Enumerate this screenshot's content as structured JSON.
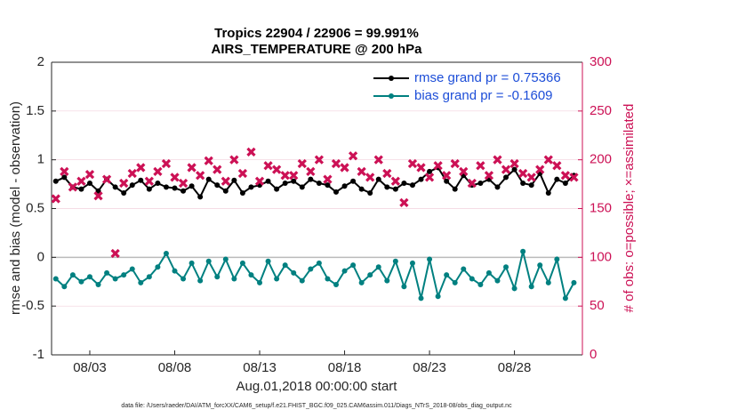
{
  "chart_data": {
    "type": "line",
    "title": "Tropics 22904 / 22906 = 99.991%",
    "subtitle": "AIRS_TEMPERATURE @ 200 hPa",
    "y_label": "rmse and bias (model - observation)",
    "y2_label": "# of obs: o=possible; ×=assimilated",
    "x_label": "Aug.01,2018 00:00:00 start",
    "footnote": "data file: /Users/raeder/DAI/ATM_forcXX/CAM6_setup/f.e21.FHIST_BGC.f09_025.CAM6assim.011/Diags_NTrS_2018-08/obs_diag_output.nc",
    "x": [
      0,
      0.5,
      1,
      1.5,
      2,
      2.5,
      3,
      3.5,
      4,
      4.5,
      5,
      5.5,
      6,
      6.5,
      7,
      7.5,
      8,
      8.5,
      9,
      9.5,
      10,
      10.5,
      11,
      11.5,
      12,
      12.5,
      13,
      13.5,
      14,
      14.5,
      15,
      15.5,
      16,
      16.5,
      17,
      17.5,
      18,
      18.5,
      19,
      19.5,
      20,
      20.5,
      21,
      21.5,
      22,
      22.5,
      23,
      23.5,
      24,
      24.5,
      25,
      25.5,
      26,
      26.5,
      27,
      27.5,
      28,
      28.5,
      29,
      29.5,
      30,
      30.5
    ],
    "xlim": [
      -0.25,
      31
    ],
    "xticks": [
      {
        "value": 2,
        "label": "08/03"
      },
      {
        "value": 7,
        "label": "08/08"
      },
      {
        "value": 12,
        "label": "08/13"
      },
      {
        "value": 17,
        "label": "08/18"
      },
      {
        "value": 22,
        "label": "08/23"
      },
      {
        "value": 27,
        "label": "08/28"
      }
    ],
    "ylim": [
      -1,
      2
    ],
    "yticks": [
      -1,
      -0.5,
      0,
      0.5,
      1,
      1.5,
      2
    ],
    "y2lim": [
      0,
      300
    ],
    "y2ticks": [
      0,
      50,
      100,
      150,
      200,
      250,
      300
    ],
    "grid": true,
    "legend": "top-right",
    "series": [
      {
        "name": "rmse grand pr = 0.75366",
        "color": "#000000",
        "values": [
          0.78,
          0.82,
          0.72,
          0.7,
          0.76,
          0.68,
          0.8,
          0.72,
          0.66,
          0.74,
          0.79,
          0.7,
          0.76,
          0.72,
          0.71,
          0.68,
          0.73,
          0.62,
          0.8,
          0.74,
          0.68,
          0.79,
          0.66,
          0.72,
          0.74,
          0.78,
          0.7,
          0.76,
          0.78,
          0.72,
          0.8,
          0.76,
          0.74,
          0.67,
          0.73,
          0.78,
          0.7,
          0.66,
          0.8,
          0.72,
          0.7,
          0.76,
          0.74,
          0.8,
          0.88,
          0.92,
          0.78,
          0.7,
          0.84,
          0.74,
          0.76,
          0.8,
          0.72,
          0.82,
          0.9,
          0.76,
          0.74,
          0.86,
          0.66,
          0.8,
          0.76,
          0.84
        ]
      },
      {
        "name": "bias grand pr = -0.1609",
        "color": "#008080",
        "values": [
          -0.22,
          -0.3,
          -0.18,
          -0.25,
          -0.2,
          -0.28,
          -0.16,
          -0.22,
          -0.18,
          -0.12,
          -0.26,
          -0.2,
          -0.1,
          0.04,
          -0.14,
          -0.22,
          -0.06,
          -0.24,
          -0.04,
          -0.2,
          -0.02,
          -0.22,
          -0.06,
          -0.18,
          -0.26,
          -0.04,
          -0.22,
          -0.08,
          -0.16,
          -0.24,
          -0.12,
          -0.06,
          -0.22,
          -0.28,
          -0.14,
          -0.08,
          -0.26,
          -0.18,
          -0.1,
          -0.24,
          -0.04,
          -0.3,
          -0.06,
          -0.42,
          -0.02,
          -0.4,
          -0.18,
          -0.26,
          -0.12,
          -0.22,
          -0.28,
          -0.16,
          -0.24,
          -0.1,
          -0.32,
          0.06,
          -0.3,
          -0.08,
          -0.26,
          -0.02,
          -0.42,
          -0.26
        ]
      },
      {
        "color": "#cc1155",
        "axis": "y2",
        "marker": "x",
        "values": [
          160,
          188,
          172,
          178,
          185,
          163,
          180,
          104,
          176,
          186,
          192,
          178,
          188,
          196,
          182,
          176,
          192,
          184,
          199,
          190,
          178,
          200,
          186,
          208,
          178,
          194,
          190,
          184,
          184,
          196,
          188,
          200,
          180,
          196,
          192,
          204,
          188,
          182,
          200,
          186,
          178,
          156,
          196,
          192,
          182,
          194,
          184,
          196,
          188,
          176,
          194,
          184,
          200,
          190,
          196,
          186,
          182,
          190,
          200,
          194,
          184,
          182
        ]
      }
    ]
  }
}
